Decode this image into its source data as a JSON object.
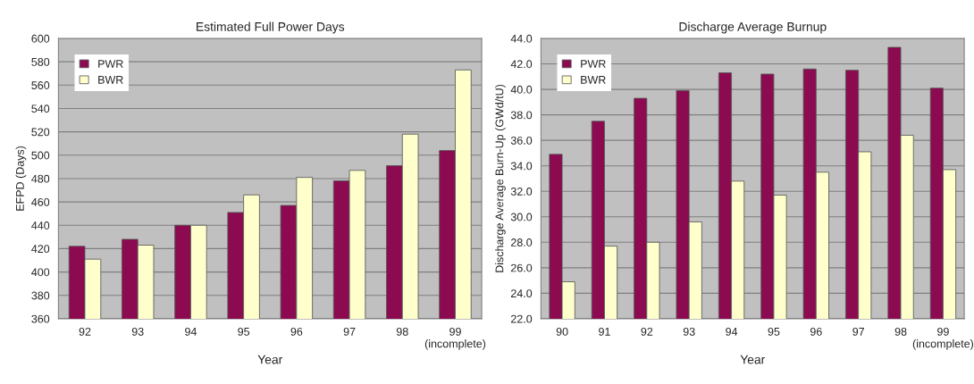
{
  "chart_data": [
    {
      "type": "bar",
      "title": "Estimated Full Power Days",
      "xlabel": "Year",
      "ylabel": "EFPD (Days)",
      "categories": [
        "92",
        "93",
        "94",
        "95",
        "96",
        "97",
        "98",
        "99\n(incomplete)"
      ],
      "series": [
        {
          "name": "PWR",
          "color": "#8b0a50",
          "values": [
            422,
            428,
            440,
            451,
            457,
            478,
            491,
            504
          ]
        },
        {
          "name": "BWR",
          "color": "#ffffcc",
          "values": [
            411,
            423,
            440,
            466,
            481,
            487,
            518,
            573
          ]
        }
      ],
      "ylim": [
        360,
        600
      ],
      "yticks": [
        360,
        380,
        400,
        420,
        440,
        460,
        480,
        500,
        520,
        540,
        560,
        580,
        600
      ],
      "grid": "y",
      "legend": "top left"
    },
    {
      "type": "bar",
      "title": "Discharge Average Burnup",
      "xlabel": "Year",
      "ylabel": "Discharge Average Burn-Up (GWd/tU)",
      "categories": [
        "90",
        "91",
        "92",
        "93",
        "94",
        "95",
        "96",
        "97",
        "98",
        "99\n(incomplete)"
      ],
      "series": [
        {
          "name": "PWR",
          "color": "#8b0a50",
          "values": [
            34.9,
            37.5,
            39.3,
            39.9,
            41.3,
            41.2,
            41.6,
            41.5,
            43.3,
            40.1
          ]
        },
        {
          "name": "BWR",
          "color": "#ffffcc",
          "values": [
            24.9,
            27.7,
            28.0,
            29.6,
            32.8,
            31.7,
            33.5,
            35.1,
            36.4,
            33.7
          ]
        }
      ],
      "ylim": [
        22,
        44
      ],
      "yticks": [
        {
          "value": 22,
          "label": "22.0"
        },
        {
          "value": 24,
          "label": "24.0"
        },
        {
          "value": 26,
          "label": "26.0"
        },
        {
          "value": 28,
          "label": "28.0"
        },
        {
          "value": 30,
          "label": "30.0"
        },
        {
          "value": 32,
          "label": "32.0"
        },
        {
          "value": 34,
          "label": "34.0"
        },
        {
          "value": 36,
          "label": "36.0"
        },
        {
          "value": 38,
          "label": "38.0"
        },
        {
          "value": 40,
          "label": "40.0"
        },
        {
          "value": 42,
          "label": "42.0"
        },
        {
          "value": 44,
          "label": "44.0"
        }
      ],
      "grid": "y",
      "legend": "top left"
    }
  ]
}
